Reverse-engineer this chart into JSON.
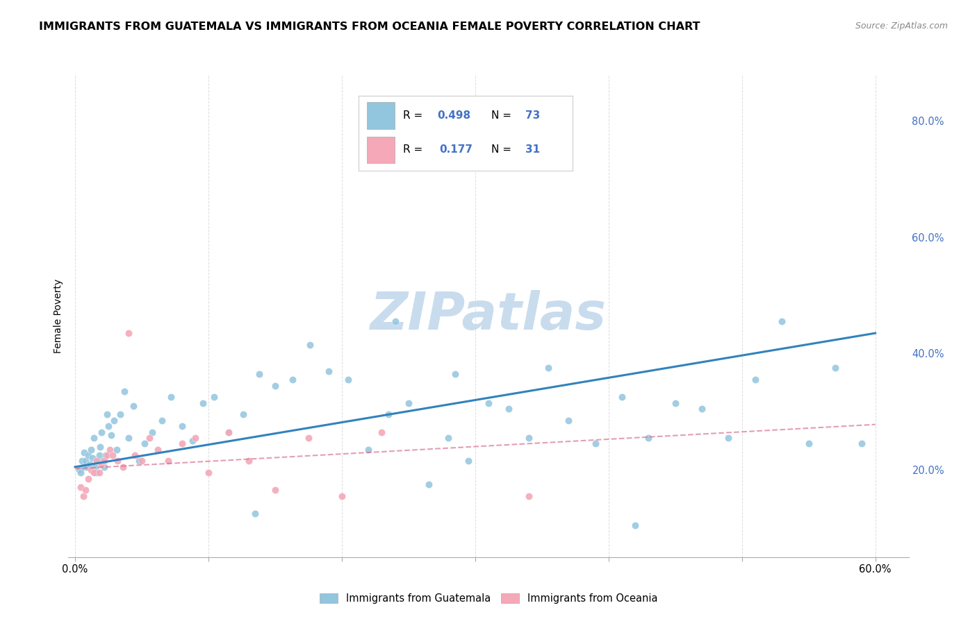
{
  "title": "IMMIGRANTS FROM GUATEMALA VS IMMIGRANTS FROM OCEANIA FEMALE POVERTY CORRELATION CHART",
  "source": "Source: ZipAtlas.com",
  "ylabel": "Female Poverty",
  "xlim": [
    -0.005,
    0.625
  ],
  "ylim": [
    0.05,
    0.88
  ],
  "x_ticks": [
    0.0,
    0.1,
    0.2,
    0.3,
    0.4,
    0.5,
    0.6
  ],
  "x_tick_labels": [
    "0.0%",
    "",
    "",
    "",
    "",
    "",
    "60.0%"
  ],
  "y_ticks_right": [
    0.2,
    0.4,
    0.6,
    0.8
  ],
  "y_tick_labels_right": [
    "20.0%",
    "40.0%",
    "60.0%",
    "80.0%"
  ],
  "legend_blue_label": "Immigrants from Guatemala",
  "legend_pink_label": "Immigrants from Oceania",
  "R_blue": 0.498,
  "N_blue": 73,
  "R_pink": 0.177,
  "N_pink": 31,
  "blue_color": "#92c5de",
  "pink_color": "#f4a8b8",
  "blue_trend_color": "#3182bd",
  "pink_trend_color": "#d46a8a",
  "title_fontsize": 11.5,
  "source_fontsize": 9,
  "watermark_text": "ZIPatlas",
  "watermark_color": "#c8dced",
  "background_color": "#ffffff",
  "grid_color": "#d9d9d9",
  "blue_scatter_x": [
    0.003,
    0.004,
    0.005,
    0.006,
    0.007,
    0.008,
    0.009,
    0.01,
    0.011,
    0.012,
    0.013,
    0.014,
    0.015,
    0.016,
    0.017,
    0.018,
    0.019,
    0.02,
    0.021,
    0.022,
    0.023,
    0.024,
    0.025,
    0.027,
    0.029,
    0.031,
    0.034,
    0.037,
    0.04,
    0.044,
    0.048,
    0.052,
    0.058,
    0.065,
    0.072,
    0.08,
    0.088,
    0.096,
    0.104,
    0.115,
    0.126,
    0.138,
    0.15,
    0.163,
    0.176,
    0.19,
    0.205,
    0.22,
    0.235,
    0.25,
    0.265,
    0.28,
    0.295,
    0.31,
    0.325,
    0.34,
    0.355,
    0.37,
    0.39,
    0.41,
    0.43,
    0.45,
    0.47,
    0.49,
    0.51,
    0.53,
    0.55,
    0.57,
    0.59,
    0.285,
    0.24,
    0.135,
    0.42
  ],
  "blue_scatter_y": [
    0.2,
    0.195,
    0.215,
    0.205,
    0.23,
    0.215,
    0.205,
    0.225,
    0.21,
    0.235,
    0.22,
    0.255,
    0.205,
    0.195,
    0.215,
    0.225,
    0.24,
    0.265,
    0.215,
    0.205,
    0.225,
    0.295,
    0.275,
    0.26,
    0.285,
    0.235,
    0.295,
    0.335,
    0.255,
    0.31,
    0.215,
    0.245,
    0.265,
    0.285,
    0.325,
    0.275,
    0.25,
    0.315,
    0.325,
    0.265,
    0.295,
    0.365,
    0.345,
    0.355,
    0.415,
    0.37,
    0.355,
    0.235,
    0.295,
    0.315,
    0.175,
    0.255,
    0.215,
    0.315,
    0.305,
    0.255,
    0.375,
    0.285,
    0.245,
    0.325,
    0.255,
    0.315,
    0.305,
    0.255,
    0.355,
    0.455,
    0.245,
    0.375,
    0.245,
    0.365,
    0.455,
    0.125,
    0.105
  ],
  "pink_scatter_x": [
    0.004,
    0.006,
    0.008,
    0.01,
    0.012,
    0.014,
    0.016,
    0.018,
    0.02,
    0.022,
    0.024,
    0.026,
    0.028,
    0.032,
    0.036,
    0.04,
    0.045,
    0.05,
    0.056,
    0.062,
    0.07,
    0.08,
    0.09,
    0.1,
    0.115,
    0.13,
    0.15,
    0.175,
    0.2,
    0.23,
    0.34
  ],
  "pink_scatter_y": [
    0.17,
    0.155,
    0.165,
    0.185,
    0.2,
    0.195,
    0.215,
    0.195,
    0.21,
    0.215,
    0.225,
    0.235,
    0.225,
    0.215,
    0.205,
    0.435,
    0.225,
    0.215,
    0.255,
    0.235,
    0.215,
    0.245,
    0.255,
    0.195,
    0.265,
    0.215,
    0.165,
    0.255,
    0.155,
    0.265,
    0.155
  ],
  "blue_trend_x": [
    0.0,
    0.6
  ],
  "blue_trend_y": [
    0.205,
    0.435
  ],
  "pink_trend_x": [
    0.0,
    0.6
  ],
  "pink_trend_y": [
    0.202,
    0.278
  ]
}
